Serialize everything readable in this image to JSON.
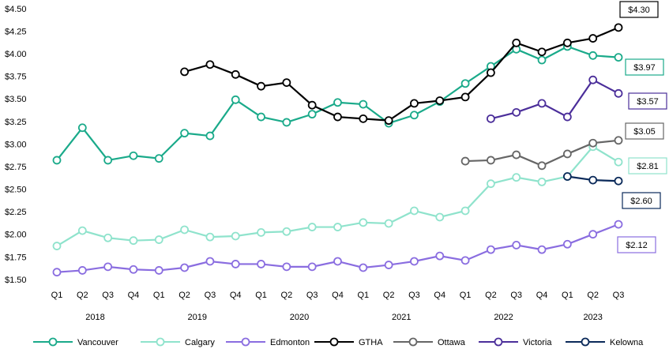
{
  "chart_data": {
    "type": "line",
    "categories": [
      "Q1",
      "Q2",
      "Q3",
      "Q4",
      "Q1",
      "Q2",
      "Q3",
      "Q4",
      "Q1",
      "Q2",
      "Q3",
      "Q4",
      "Q1",
      "Q2",
      "Q3",
      "Q4",
      "Q1",
      "Q2",
      "Q3",
      "Q4",
      "Q1",
      "Q2",
      "Q3"
    ],
    "year_groups": [
      "2018",
      "2019",
      "2020",
      "2021",
      "2022",
      "2023"
    ],
    "ylim": [
      1.5,
      4.5
    ],
    "yticks": [
      {
        "value": 1.5,
        "label": "$1.50"
      },
      {
        "value": 1.75,
        "label": "$1.75"
      },
      {
        "value": 2.0,
        "label": "$2.00"
      },
      {
        "value": 2.25,
        "label": "$2.25"
      },
      {
        "value": 2.5,
        "label": "$2.50"
      },
      {
        "value": 2.75,
        "label": "$2.75"
      },
      {
        "value": 3.0,
        "label": "$3.00"
      },
      {
        "value": 3.25,
        "label": "$3.25"
      },
      {
        "value": 3.5,
        "label": "$3.50"
      },
      {
        "value": 3.75,
        "label": "$3.75"
      },
      {
        "value": 4.0,
        "label": "$4.00"
      },
      {
        "value": 4.25,
        "label": "$4.25"
      },
      {
        "value": 4.5,
        "label": "$4.50"
      }
    ],
    "legend": "bottom",
    "series": [
      {
        "name": "Vancouver",
        "color": "#1aaa8a",
        "values": [
          2.83,
          3.19,
          2.83,
          2.88,
          2.85,
          3.13,
          3.1,
          3.5,
          3.31,
          3.25,
          3.34,
          3.47,
          3.45,
          3.24,
          3.33,
          3.48,
          3.68,
          3.87,
          4.06,
          3.94,
          4.09,
          3.99,
          3.97
        ],
        "value_labels": [
          null,
          null,
          null,
          null,
          null,
          null,
          null,
          null,
          null,
          null,
          null,
          null,
          null,
          null,
          null,
          null,
          null,
          null,
          null,
          null,
          null,
          null,
          "$3.97"
        ]
      },
      {
        "name": "Calgary",
        "color": "#8fe3cc",
        "values": [
          1.88,
          2.05,
          1.97,
          1.94,
          1.95,
          2.06,
          1.98,
          1.99,
          2.03,
          2.04,
          2.09,
          2.09,
          2.14,
          2.13,
          2.27,
          2.2,
          2.27,
          2.57,
          2.64,
          2.59,
          2.65,
          2.98,
          2.81
        ],
        "value_labels": [
          null,
          null,
          null,
          null,
          null,
          null,
          null,
          null,
          null,
          null,
          null,
          null,
          null,
          null,
          null,
          null,
          null,
          null,
          null,
          null,
          null,
          null,
          "$2.81"
        ]
      },
      {
        "name": "Edmonton",
        "color": "#8a6de0",
        "values": [
          1.59,
          1.61,
          1.65,
          1.62,
          1.61,
          1.64,
          1.71,
          1.68,
          1.68,
          1.65,
          1.65,
          1.71,
          1.64,
          1.67,
          1.71,
          1.77,
          1.72,
          1.84,
          1.89,
          1.84,
          1.9,
          2.01,
          2.12
        ],
        "value_labels": [
          null,
          null,
          null,
          null,
          null,
          null,
          null,
          null,
          null,
          null,
          null,
          null,
          null,
          null,
          null,
          null,
          null,
          null,
          null,
          null,
          null,
          null,
          "$2.12"
        ]
      },
      {
        "name": "GTHA",
        "color": "#000000",
        "values": [
          null,
          null,
          null,
          null,
          null,
          3.81,
          3.89,
          3.78,
          3.65,
          3.69,
          3.44,
          3.31,
          3.29,
          3.27,
          3.46,
          3.49,
          3.53,
          3.8,
          4.13,
          4.03,
          4.13,
          4.18,
          4.3
        ],
        "value_labels": [
          null,
          null,
          null,
          null,
          null,
          null,
          null,
          null,
          null,
          null,
          null,
          null,
          null,
          null,
          null,
          null,
          null,
          null,
          null,
          null,
          null,
          null,
          "$4.30"
        ]
      },
      {
        "name": "Ottawa",
        "color": "#666666",
        "values": [
          null,
          null,
          null,
          null,
          null,
          null,
          null,
          null,
          null,
          null,
          null,
          null,
          null,
          null,
          null,
          null,
          2.82,
          2.83,
          2.89,
          2.77,
          2.9,
          3.02,
          3.05
        ],
        "value_labels": [
          null,
          null,
          null,
          null,
          null,
          null,
          null,
          null,
          null,
          null,
          null,
          null,
          null,
          null,
          null,
          null,
          null,
          null,
          null,
          null,
          null,
          null,
          "$3.05"
        ]
      },
      {
        "name": "Victoria",
        "color": "#4b2e9a",
        "values": [
          null,
          null,
          null,
          null,
          null,
          null,
          null,
          null,
          null,
          null,
          null,
          null,
          null,
          null,
          null,
          null,
          null,
          3.29,
          3.36,
          3.46,
          3.31,
          3.72,
          3.57
        ],
        "value_labels": [
          null,
          null,
          null,
          null,
          null,
          null,
          null,
          null,
          null,
          null,
          null,
          null,
          null,
          null,
          null,
          null,
          null,
          null,
          null,
          null,
          null,
          null,
          "$3.57"
        ]
      },
      {
        "name": "Kelowna",
        "color": "#0b2a5a",
        "values": [
          null,
          null,
          null,
          null,
          null,
          null,
          null,
          null,
          null,
          null,
          null,
          null,
          null,
          null,
          null,
          null,
          null,
          null,
          null,
          null,
          2.65,
          2.61,
          2.6
        ],
        "value_labels": [
          null,
          null,
          null,
          null,
          null,
          null,
          null,
          null,
          null,
          null,
          null,
          null,
          null,
          null,
          null,
          null,
          null,
          null,
          null,
          null,
          null,
          null,
          "$2.60"
        ]
      }
    ]
  }
}
